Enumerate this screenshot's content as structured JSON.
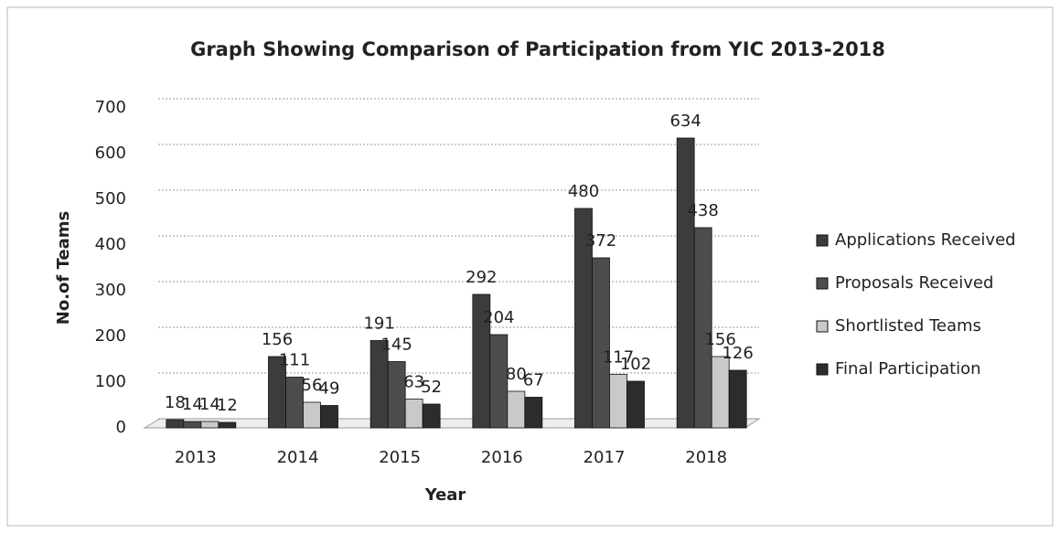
{
  "chart_data": {
    "type": "bar",
    "title": "Graph Showing Comparison of Participation from YIC 2013-2018",
    "x_label": "Year",
    "y_label": "No.of Teams",
    "categories": [
      "2013",
      "2014",
      "2015",
      "2016",
      "2017",
      "2018"
    ],
    "series": [
      {
        "name": "Applications Received",
        "color": "#3c3c3c",
        "values": [
          18,
          156,
          191,
          292,
          480,
          634
        ]
      },
      {
        "name": "Proposals Received",
        "color": "#4d4d4d",
        "values": [
          14,
          111,
          145,
          204,
          372,
          438
        ]
      },
      {
        "name": "Shortlisted Teams",
        "color": "#c9c9c9",
        "values": [
          14,
          56,
          63,
          80,
          117,
          156
        ]
      },
      {
        "name": "Final Participation",
        "color": "#2c2c2c",
        "values": [
          12,
          49,
          52,
          67,
          102,
          126
        ]
      }
    ],
    "ylim": [
      0,
      700
    ],
    "yticks": [
      0,
      100,
      200,
      300,
      400,
      500,
      600,
      700
    ],
    "grid": true,
    "legend": "right"
  }
}
